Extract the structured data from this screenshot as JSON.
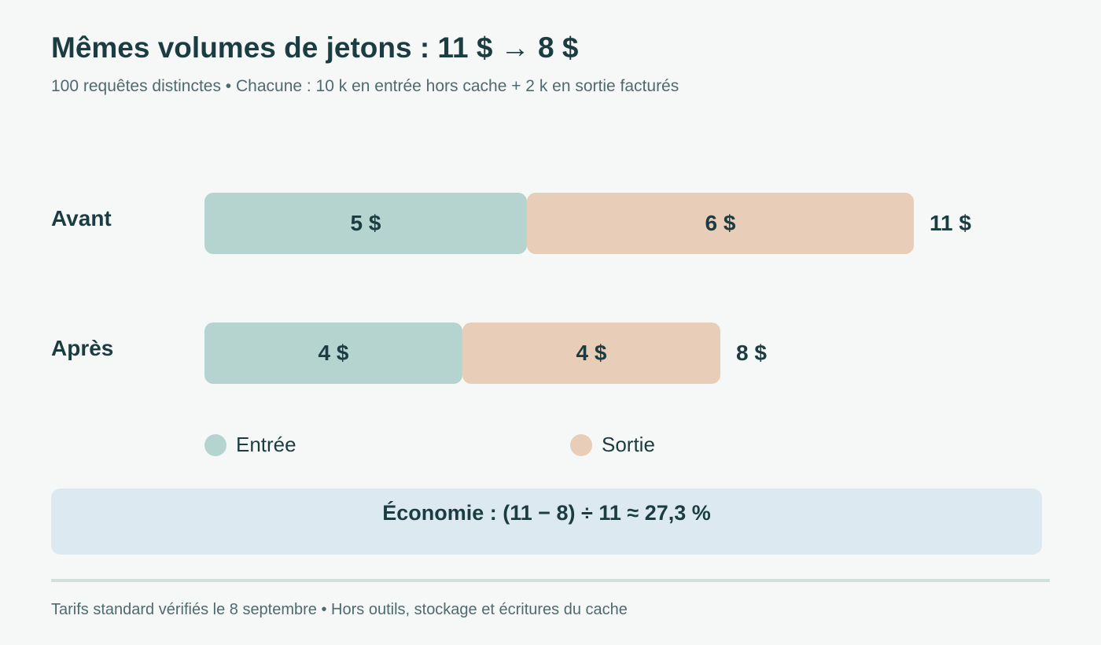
{
  "header": {
    "title": "Mêmes volumes de jetons : 11 $ → 8 $",
    "subtitle": "100 requêtes distinctes • Chacune : 10 k en entrée hors cache + 2 k en sortie facturés"
  },
  "colors": {
    "input": "#b5d4d0",
    "output": "#e8cdb8",
    "text": "#1b3d42",
    "savings_bg": "#dce9f1"
  },
  "chart_data": {
    "type": "bar",
    "orientation": "horizontal",
    "stacked": true,
    "categories": [
      "Avant",
      "Après"
    ],
    "series": [
      {
        "name": "Entrée",
        "values": [
          5,
          4
        ],
        "labels": [
          "5 $",
          "4 $"
        ]
      },
      {
        "name": "Sortie",
        "values": [
          6,
          4
        ],
        "labels": [
          "6 $",
          "4 $"
        ]
      }
    ],
    "totals": [
      11,
      8
    ],
    "total_labels": [
      "11 $",
      "8 $"
    ],
    "legend": [
      "Entrée",
      "Sortie"
    ],
    "legend_position": "bottom",
    "grid": false
  },
  "savings": {
    "text": "Économie : (11 − 8) ÷ 11 ≈ 27,3 %"
  },
  "footer": {
    "text": "Tarifs standard vérifiés le 8 septembre • Hors outils, stockage et écritures du cache"
  }
}
